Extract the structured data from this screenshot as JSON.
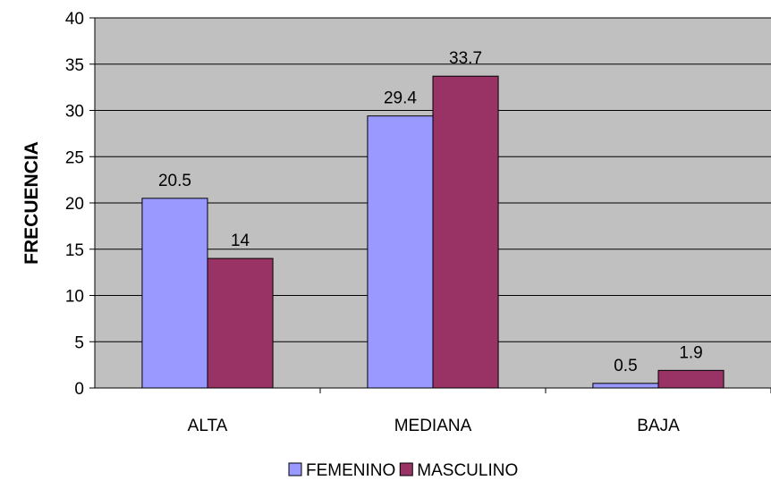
{
  "chart_data": {
    "type": "bar",
    "title": "",
    "xlabel": "",
    "ylabel": "FRECUENCIA",
    "categories": [
      "ALTA",
      "MEDIANA",
      "BAJA"
    ],
    "series": [
      {
        "name": "FEMENINO",
        "values": [
          20.5,
          29.4,
          0.5
        ],
        "labels": [
          "20.5",
          "29.4",
          "0.5"
        ],
        "color": "#9999ff"
      },
      {
        "name": "MASCULINO",
        "values": [
          14,
          33.7,
          1.9
        ],
        "labels": [
          "14",
          "33.7",
          "1.9"
        ],
        "color": "#993366"
      }
    ],
    "ylim": [
      0,
      40
    ],
    "yticks": [
      0,
      5,
      10,
      15,
      20,
      25,
      30,
      35,
      40
    ],
    "grid": true,
    "legend_position": "bottom",
    "plot_background": "#c0c0c0"
  }
}
